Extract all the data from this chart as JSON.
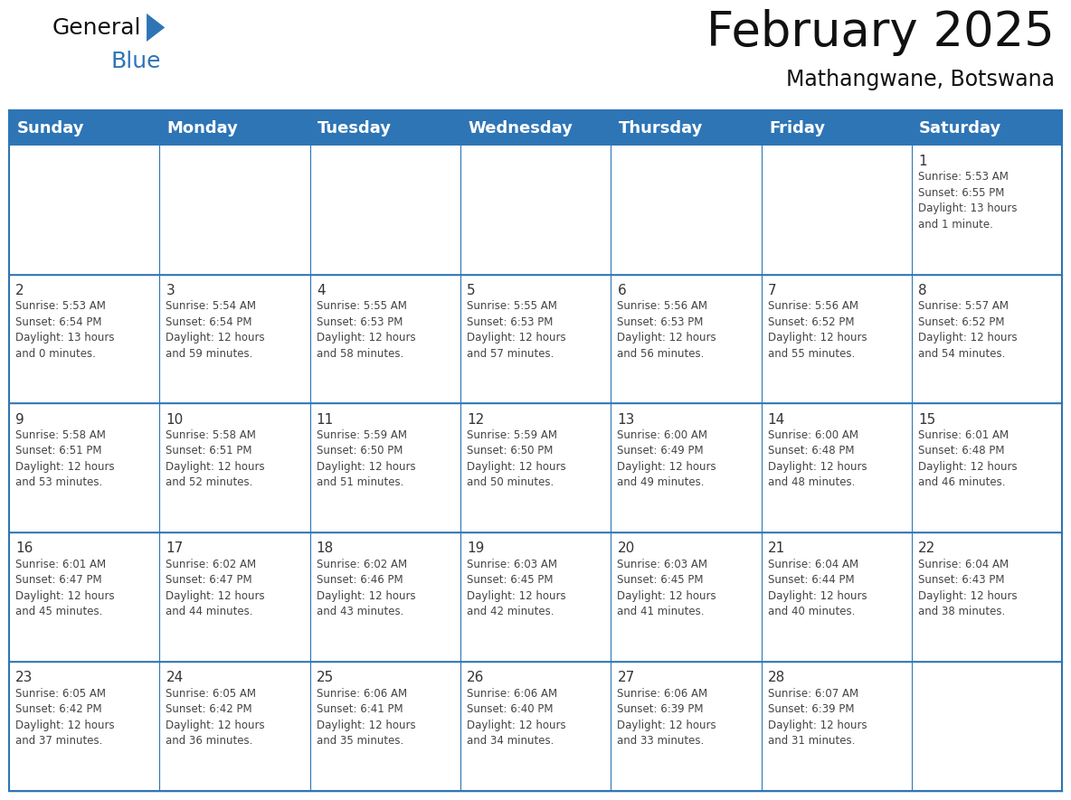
{
  "title": "February 2025",
  "subtitle": "Mathangwane, Botswana",
  "header_bg": "#2E75B6",
  "header_text_color": "#FFFFFF",
  "border_color": "#2E75B6",
  "day_headers": [
    "Sunday",
    "Monday",
    "Tuesday",
    "Wednesday",
    "Thursday",
    "Friday",
    "Saturday"
  ],
  "title_fontsize": 38,
  "subtitle_fontsize": 17,
  "header_fontsize": 13,
  "day_num_fontsize": 11,
  "cell_fontsize": 8.5,
  "logo_color1": "#111111",
  "logo_color2": "#2E75B6",
  "logo_triangle_color": "#2E75B6",
  "weeks": [
    [
      {
        "day": null,
        "info": null
      },
      {
        "day": null,
        "info": null
      },
      {
        "day": null,
        "info": null
      },
      {
        "day": null,
        "info": null
      },
      {
        "day": null,
        "info": null
      },
      {
        "day": null,
        "info": null
      },
      {
        "day": 1,
        "info": "Sunrise: 5:53 AM\nSunset: 6:55 PM\nDaylight: 13 hours\nand 1 minute."
      }
    ],
    [
      {
        "day": 2,
        "info": "Sunrise: 5:53 AM\nSunset: 6:54 PM\nDaylight: 13 hours\nand 0 minutes."
      },
      {
        "day": 3,
        "info": "Sunrise: 5:54 AM\nSunset: 6:54 PM\nDaylight: 12 hours\nand 59 minutes."
      },
      {
        "day": 4,
        "info": "Sunrise: 5:55 AM\nSunset: 6:53 PM\nDaylight: 12 hours\nand 58 minutes."
      },
      {
        "day": 5,
        "info": "Sunrise: 5:55 AM\nSunset: 6:53 PM\nDaylight: 12 hours\nand 57 minutes."
      },
      {
        "day": 6,
        "info": "Sunrise: 5:56 AM\nSunset: 6:53 PM\nDaylight: 12 hours\nand 56 minutes."
      },
      {
        "day": 7,
        "info": "Sunrise: 5:56 AM\nSunset: 6:52 PM\nDaylight: 12 hours\nand 55 minutes."
      },
      {
        "day": 8,
        "info": "Sunrise: 5:57 AM\nSunset: 6:52 PM\nDaylight: 12 hours\nand 54 minutes."
      }
    ],
    [
      {
        "day": 9,
        "info": "Sunrise: 5:58 AM\nSunset: 6:51 PM\nDaylight: 12 hours\nand 53 minutes."
      },
      {
        "day": 10,
        "info": "Sunrise: 5:58 AM\nSunset: 6:51 PM\nDaylight: 12 hours\nand 52 minutes."
      },
      {
        "day": 11,
        "info": "Sunrise: 5:59 AM\nSunset: 6:50 PM\nDaylight: 12 hours\nand 51 minutes."
      },
      {
        "day": 12,
        "info": "Sunrise: 5:59 AM\nSunset: 6:50 PM\nDaylight: 12 hours\nand 50 minutes."
      },
      {
        "day": 13,
        "info": "Sunrise: 6:00 AM\nSunset: 6:49 PM\nDaylight: 12 hours\nand 49 minutes."
      },
      {
        "day": 14,
        "info": "Sunrise: 6:00 AM\nSunset: 6:48 PM\nDaylight: 12 hours\nand 48 minutes."
      },
      {
        "day": 15,
        "info": "Sunrise: 6:01 AM\nSunset: 6:48 PM\nDaylight: 12 hours\nand 46 minutes."
      }
    ],
    [
      {
        "day": 16,
        "info": "Sunrise: 6:01 AM\nSunset: 6:47 PM\nDaylight: 12 hours\nand 45 minutes."
      },
      {
        "day": 17,
        "info": "Sunrise: 6:02 AM\nSunset: 6:47 PM\nDaylight: 12 hours\nand 44 minutes."
      },
      {
        "day": 18,
        "info": "Sunrise: 6:02 AM\nSunset: 6:46 PM\nDaylight: 12 hours\nand 43 minutes."
      },
      {
        "day": 19,
        "info": "Sunrise: 6:03 AM\nSunset: 6:45 PM\nDaylight: 12 hours\nand 42 minutes."
      },
      {
        "day": 20,
        "info": "Sunrise: 6:03 AM\nSunset: 6:45 PM\nDaylight: 12 hours\nand 41 minutes."
      },
      {
        "day": 21,
        "info": "Sunrise: 6:04 AM\nSunset: 6:44 PM\nDaylight: 12 hours\nand 40 minutes."
      },
      {
        "day": 22,
        "info": "Sunrise: 6:04 AM\nSunset: 6:43 PM\nDaylight: 12 hours\nand 38 minutes."
      }
    ],
    [
      {
        "day": 23,
        "info": "Sunrise: 6:05 AM\nSunset: 6:42 PM\nDaylight: 12 hours\nand 37 minutes."
      },
      {
        "day": 24,
        "info": "Sunrise: 6:05 AM\nSunset: 6:42 PM\nDaylight: 12 hours\nand 36 minutes."
      },
      {
        "day": 25,
        "info": "Sunrise: 6:06 AM\nSunset: 6:41 PM\nDaylight: 12 hours\nand 35 minutes."
      },
      {
        "day": 26,
        "info": "Sunrise: 6:06 AM\nSunset: 6:40 PM\nDaylight: 12 hours\nand 34 minutes."
      },
      {
        "day": 27,
        "info": "Sunrise: 6:06 AM\nSunset: 6:39 PM\nDaylight: 12 hours\nand 33 minutes."
      },
      {
        "day": 28,
        "info": "Sunrise: 6:07 AM\nSunset: 6:39 PM\nDaylight: 12 hours\nand 31 minutes."
      },
      {
        "day": null,
        "info": null
      }
    ]
  ]
}
